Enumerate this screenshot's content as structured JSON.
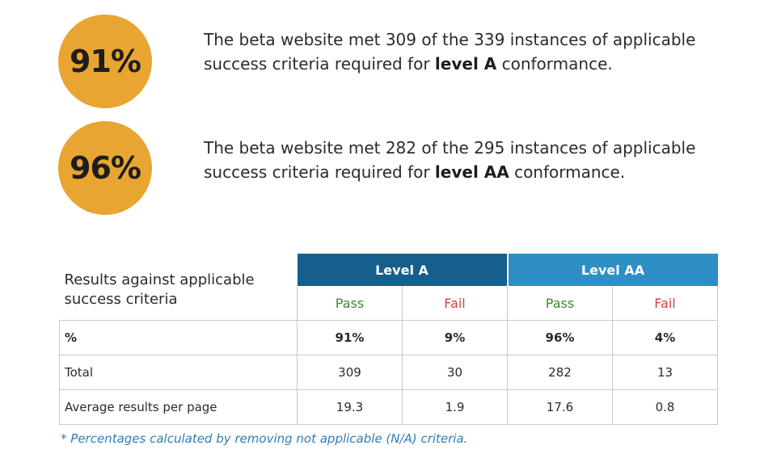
{
  "stats": [
    {
      "percent": "91%",
      "text_before": "The beta website met 309 of the 339 instances of applicable success criteria required for ",
      "text_bold": "level A",
      "text_after": " conformance."
    },
    {
      "percent": "96%",
      "text_before": "The beta website met 282 of the 295 instances of applicable success criteria required for ",
      "text_bold": "level AA",
      "text_after": " conformance."
    }
  ],
  "table": {
    "caption": "Results against applicable success criteria",
    "levels": [
      "Level A",
      "Level AA"
    ],
    "subheaders": [
      "Pass",
      "Fail",
      "Pass",
      "Fail"
    ],
    "rows": [
      {
        "label": "%",
        "values": [
          "91%",
          "9%",
          "96%",
          "4%"
        ]
      },
      {
        "label": "Total",
        "values": [
          "309",
          "30",
          "282",
          "13"
        ]
      },
      {
        "label": "Average results per page",
        "values": [
          "19.3",
          "1.9",
          "17.6",
          "0.8"
        ]
      }
    ]
  },
  "footnote": "* Percentages calculated by removing not applicable (N/A) criteria.",
  "colors": {
    "circle": "#e8a531",
    "level_a": "#155f8c",
    "level_aa": "#2e8fc4",
    "pass": "#3c8a2e",
    "fail": "#d0443c",
    "footnote": "#2f7fb5"
  }
}
